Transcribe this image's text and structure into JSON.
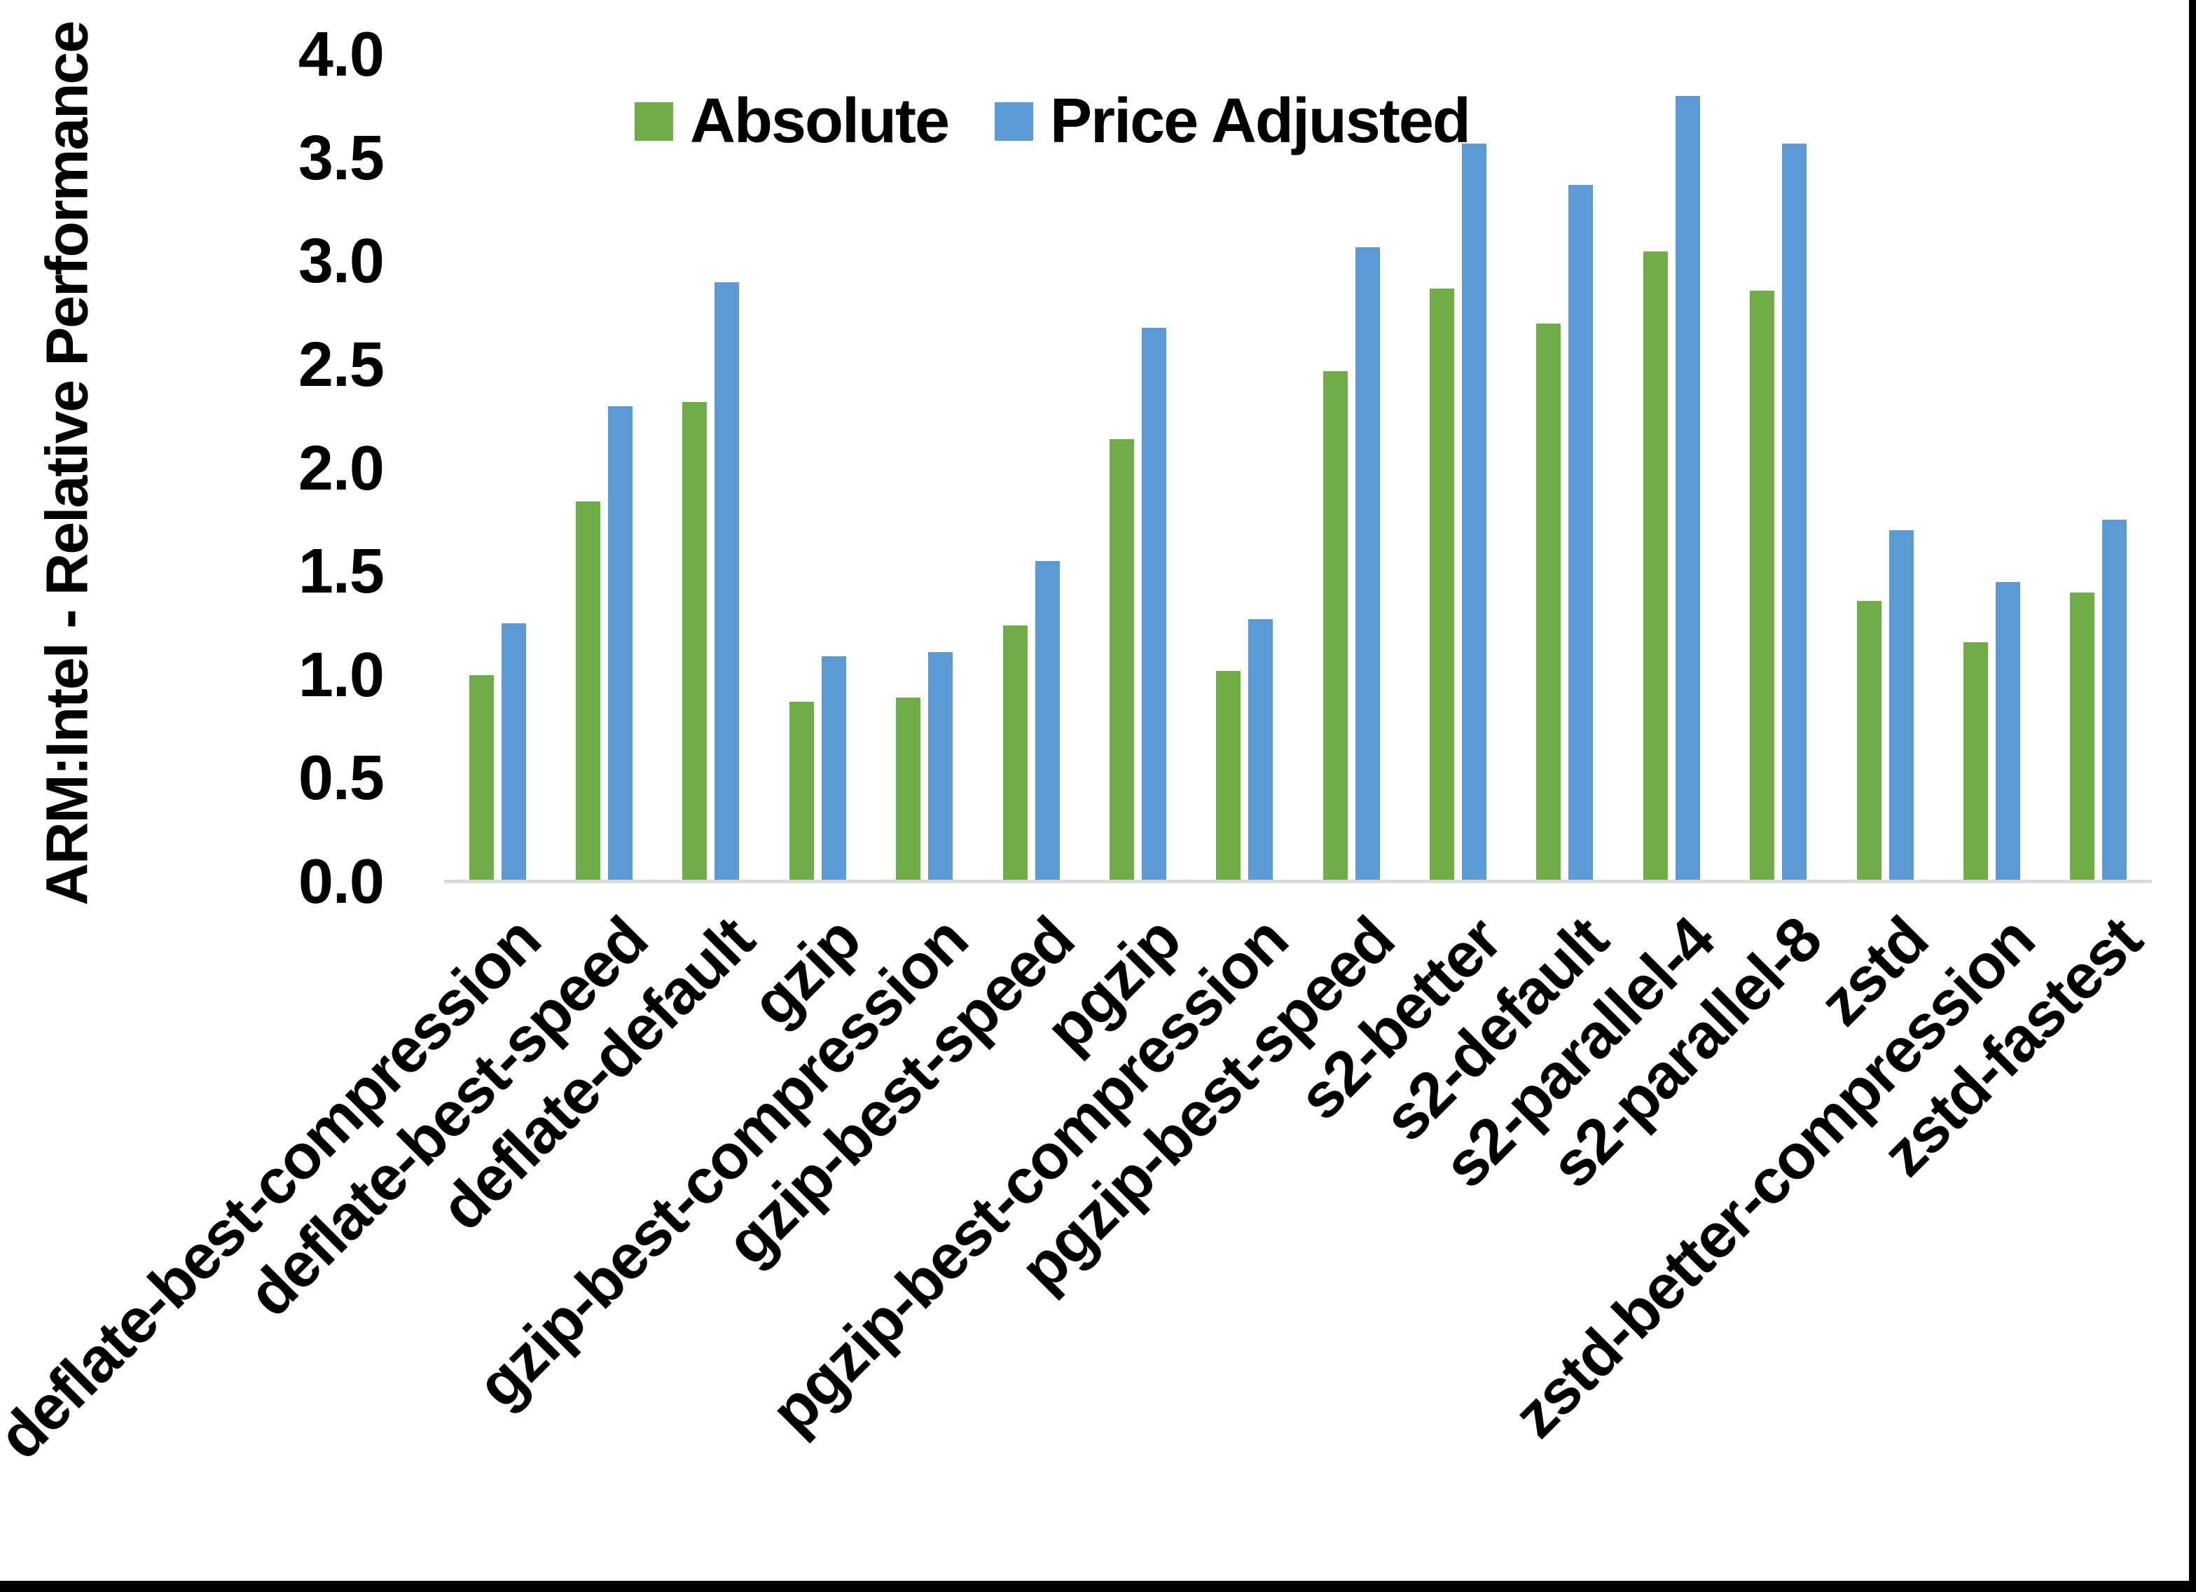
{
  "page": {
    "background": "#FFFFFF",
    "right_border_color": "#000000",
    "bottom_border_color": "#000000"
  },
  "chart_data": {
    "type": "bar",
    "title": "",
    "xlabel": "",
    "ylabel": "ARM:Intel - Relative Performance",
    "ylim": [
      0.0,
      4.0
    ],
    "ytick_step": 0.5,
    "ytick_labels": [
      "0.0",
      "0.5",
      "1.0",
      "1.5",
      "2.0",
      "2.5",
      "3.0",
      "3.5",
      "4.0"
    ],
    "grid": false,
    "legend_position": "top-center",
    "axis_line_color": "#D9D9D9",
    "categories": [
      "deflate-best-compression",
      "deflate-best-speed",
      "deflate-default",
      "gzip",
      "gzip-best-compression",
      "gzip-best-speed",
      "pgzip",
      "pgzip-best-compression",
      "pgzip-best-speed",
      "s2-better",
      "s2-default",
      "s2-parallel-4",
      "s2-parallel-8",
      "zstd",
      "zstd-better-compression",
      "zstd-fastest"
    ],
    "series": [
      {
        "name": "Absolute",
        "color": "#70AD47",
        "values": [
          1.0,
          1.84,
          2.32,
          0.87,
          0.89,
          1.24,
          2.14,
          1.02,
          2.47,
          2.87,
          2.7,
          3.05,
          2.86,
          1.36,
          1.16,
          1.4
        ]
      },
      {
        "name": "Price Adjusted",
        "color": "#5B9BD5",
        "values": [
          1.25,
          2.3,
          2.9,
          1.09,
          1.11,
          1.55,
          2.68,
          1.27,
          3.07,
          3.57,
          3.37,
          3.8,
          3.57,
          1.7,
          1.45,
          1.75
        ]
      }
    ]
  }
}
